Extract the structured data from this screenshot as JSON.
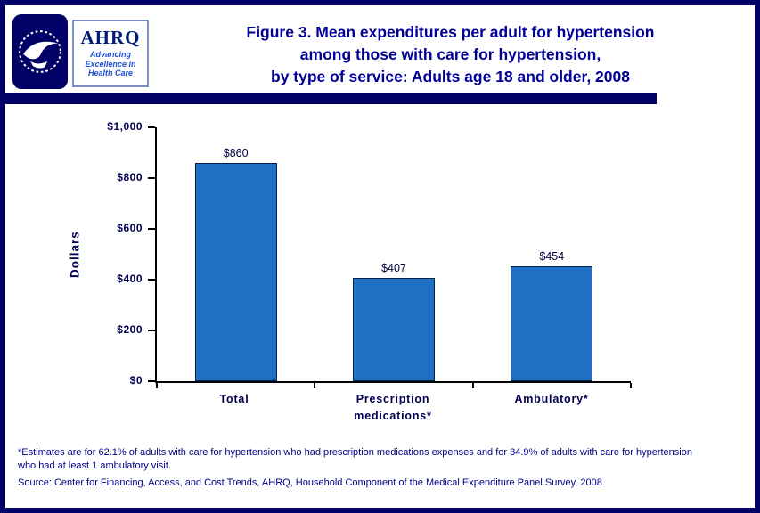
{
  "page": {
    "border_color": "#000066",
    "background": "#ffffff"
  },
  "header": {
    "title_lines": [
      "Figure 3. Mean expenditures per adult for hypertension",
      "among those with care for hypertension,",
      "by type of service: Adults age 18 and older, 2008"
    ],
    "title_color": "#000099",
    "logos": {
      "hhs_seal": "hhs-seal",
      "ahrq_name": "AHRQ",
      "ahrq_tagline_lines": [
        "Advancing",
        "Excellence in",
        "Health Care"
      ]
    }
  },
  "chart_data": {
    "type": "bar",
    "title": "Figure 3. Mean expenditures per adult for hypertension among those with care for hypertension, by type of service: Adults age 18 and older, 2008",
    "categories": [
      "Total",
      "Prescription\nmedications*",
      "Ambulatory*"
    ],
    "values": [
      860,
      407,
      454
    ],
    "value_labels": [
      "$860",
      "$407",
      "$454"
    ],
    "xlabel": "",
    "ylabel": "Dollars",
    "ylim": [
      0,
      1000
    ],
    "ytick_interval": 200,
    "ytick_labels": [
      "$0",
      "$200",
      "$400",
      "$600",
      "$800",
      "$1,000"
    ],
    "bar_color": "#1f70c4",
    "bar_border": "#00244d",
    "grid": false,
    "legend": "none"
  },
  "footer": {
    "footnote": "*Estimates are for 62.1% of adults with care for hypertension who had prescription medications expenses and for 34.9% of adults with care for hypertension who had at least 1 ambulatory visit.",
    "source": "Source: Center for Financing, Access, and Cost Trends, AHRQ, Household Component of the Medical Expenditure Panel Survey, 2008",
    "text_color": "#000087"
  }
}
